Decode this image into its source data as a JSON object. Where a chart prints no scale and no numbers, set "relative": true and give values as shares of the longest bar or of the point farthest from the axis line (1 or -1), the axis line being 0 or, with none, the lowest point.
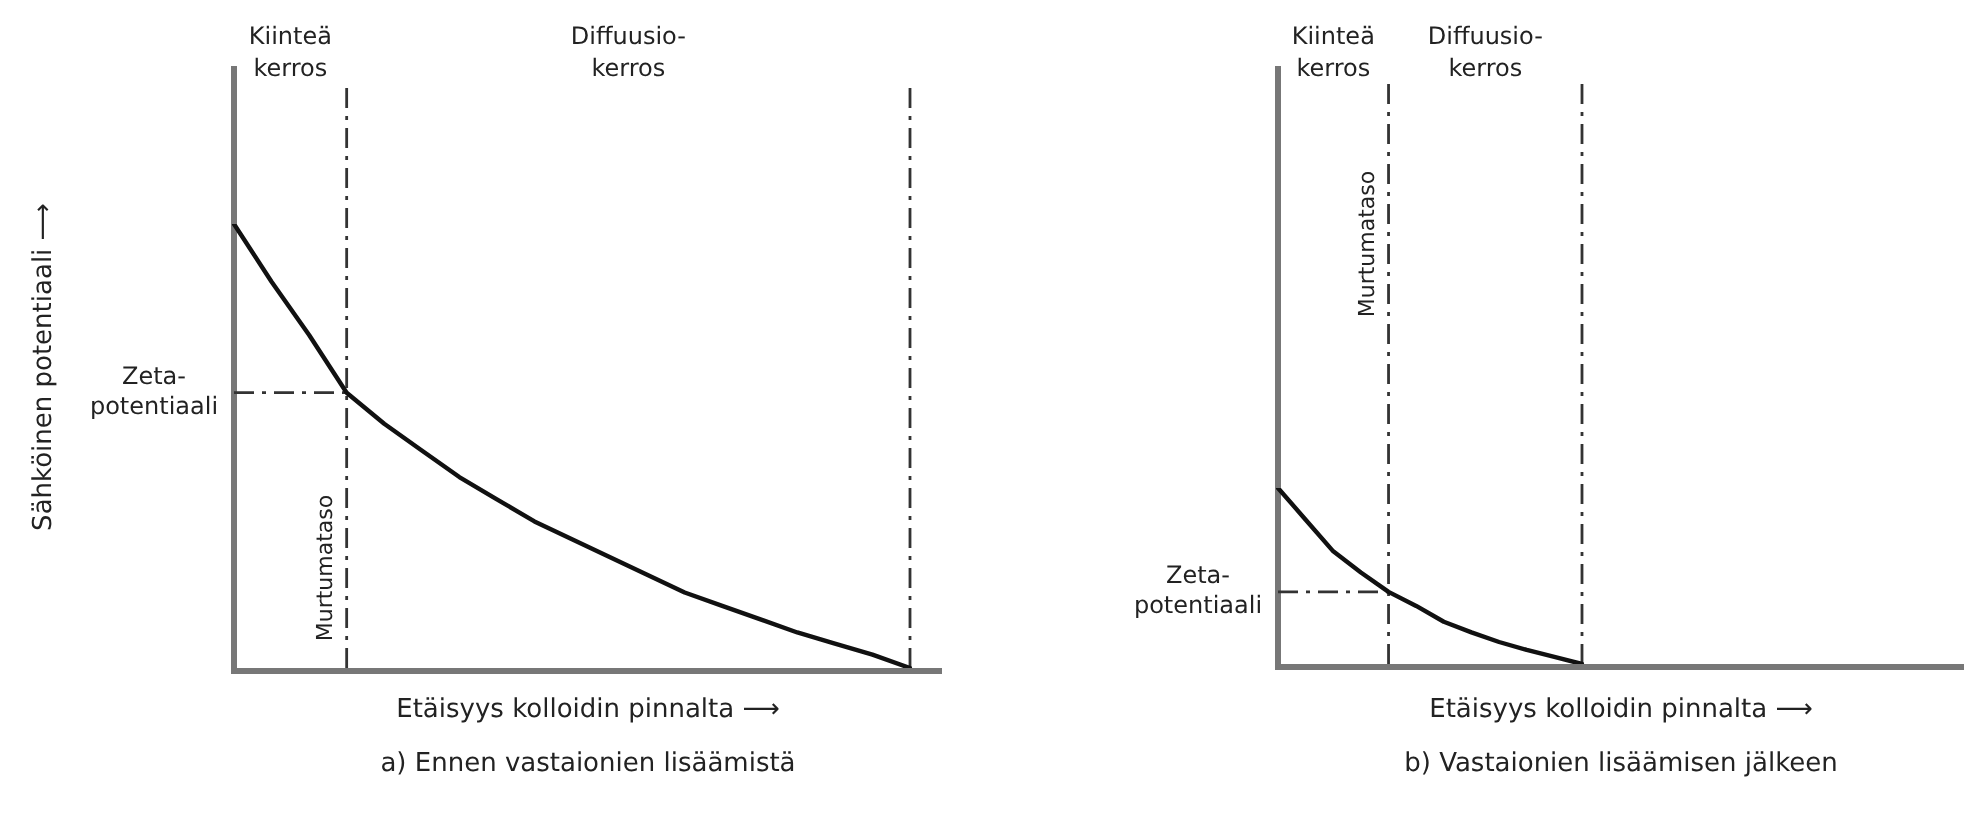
{
  "chart_data": [
    {
      "type": "line",
      "title": "a) Ennen vastaionien lisäämistä",
      "xlabel": "Etäisyys kolloidin pinnalta ⟶",
      "ylabel": "Sähköinen potentiaali ⟶",
      "relative": true,
      "color": "#111111",
      "categories": [
        null,
        null,
        null,
        null,
        null,
        null,
        null,
        null,
        null,
        null,
        null,
        null,
        null,
        null,
        null,
        null,
        null,
        null,
        null
      ],
      "values": [
        1,
        0.87,
        0.75,
        0.62,
        0.55,
        0.49,
        0.43,
        0.38,
        0.33,
        0.29,
        0.25,
        0.21,
        0.17,
        0.14,
        0.11,
        0.08,
        0.055,
        0.03,
        0
      ],
      "ref_lines": [
        {
          "axis": "y",
          "value": 0.62,
          "label": "Zeta-potentiaali"
        }
      ],
      "annotations": [
        "Kiinteä kerros",
        "Diffuusio-kerros",
        "Murtumataso"
      ]
    },
    {
      "type": "line",
      "title": "b) Vastaionien lisäämisen jälkeen",
      "xlabel": "Etäisyys kolloidin pinnalta ⟶",
      "relative": true,
      "color": "#111111",
      "categories": [
        null,
        null,
        null,
        null,
        null,
        null,
        null,
        null,
        null,
        null,
        null,
        null
      ],
      "values": [
        1,
        0.82,
        0.64,
        0.52,
        0.41,
        0.33,
        0.24,
        0.18,
        0.125,
        0.08,
        0.04,
        0
      ],
      "ref_lines": [
        {
          "axis": "y",
          "value": 0.41,
          "label": "Zeta-potentiaali"
        }
      ],
      "annotations": [
        "Kiinteä kerros",
        "Diffuusio-kerros",
        "Murtumataso"
      ]
    }
  ]
}
